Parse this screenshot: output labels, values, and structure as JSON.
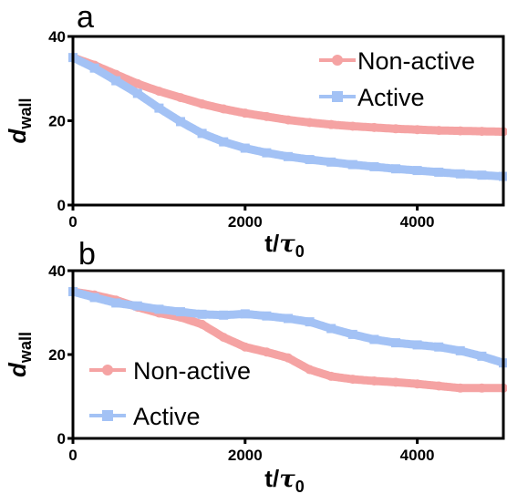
{
  "chart_data": [
    {
      "type": "line",
      "panel": "a",
      "xlabel": {
        "main": "t/",
        "greek": "τ",
        "sub": "0"
      },
      "ylabel": {
        "main": "d",
        "sub": "wall"
      },
      "xlim": [
        0,
        5000
      ],
      "ylim": [
        0,
        40
      ],
      "xticks": [
        "0",
        "2000",
        "4000"
      ],
      "yticks": [
        "0",
        "20",
        "40"
      ],
      "legend_position": "top-right",
      "series": [
        {
          "name": "Non-active",
          "color": "#f5a3a3",
          "marker": "circle",
          "x": [
            0,
            250,
            500,
            750,
            1000,
            1250,
            1500,
            1750,
            2000,
            2250,
            2500,
            2750,
            3000,
            3250,
            3500,
            3750,
            4000,
            4250,
            4500,
            4750,
            5000
          ],
          "y": [
            35,
            33.2,
            31.0,
            28.8,
            27.0,
            25.5,
            24.0,
            22.8,
            21.8,
            21.0,
            20.2,
            19.6,
            19.1,
            18.7,
            18.4,
            18.1,
            17.9,
            17.7,
            17.6,
            17.5,
            17.4
          ]
        },
        {
          "name": "Active",
          "color": "#a3c2f5",
          "marker": "square",
          "x": [
            0,
            250,
            500,
            750,
            1000,
            1250,
            1500,
            1750,
            2000,
            2250,
            2500,
            2750,
            3000,
            3250,
            3500,
            3750,
            4000,
            4250,
            4500,
            4750,
            5000
          ],
          "y": [
            35,
            32.5,
            29.5,
            26.5,
            23.0,
            19.8,
            17.0,
            15.0,
            13.5,
            12.4,
            11.5,
            10.8,
            10.2,
            9.6,
            9.1,
            8.6,
            8.2,
            7.8,
            7.4,
            7.1,
            6.8
          ]
        }
      ]
    },
    {
      "type": "line",
      "panel": "b",
      "xlabel": {
        "main": "t/",
        "greek": "τ",
        "sub": "0"
      },
      "ylabel": {
        "main": "d",
        "sub": "wall"
      },
      "xlim": [
        0,
        5000
      ],
      "ylim": [
        0,
        40
      ],
      "xticks": [
        "0",
        "2000",
        "4000"
      ],
      "yticks": [
        "0",
        "20",
        "40"
      ],
      "legend_position": "bottom-left",
      "series": [
        {
          "name": "Non-active",
          "color": "#f5a3a3",
          "marker": "circle",
          "x": [
            0,
            250,
            500,
            750,
            1000,
            1250,
            1500,
            1750,
            2000,
            2250,
            2500,
            2750,
            3000,
            3250,
            3500,
            3750,
            4000,
            4250,
            4500,
            4750,
            5000
          ],
          "y": [
            35,
            34.2,
            33.0,
            31.3,
            29.9,
            28.9,
            27.2,
            24.1,
            21.8,
            20.6,
            19.2,
            16.4,
            14.8,
            14.1,
            13.7,
            13.4,
            13.0,
            12.5,
            12.0,
            12.0,
            12.0
          ]
        },
        {
          "name": "Active",
          "color": "#a3c2f5",
          "marker": "square",
          "x": [
            0,
            250,
            500,
            750,
            1000,
            1250,
            1500,
            1750,
            2000,
            2250,
            2500,
            2750,
            3000,
            3250,
            3500,
            3750,
            4000,
            4250,
            4500,
            4750,
            5000
          ],
          "y": [
            35,
            33.6,
            32.3,
            31.6,
            30.8,
            30.2,
            29.6,
            29.4,
            29.7,
            29.2,
            28.6,
            27.8,
            26.2,
            24.8,
            23.6,
            22.8,
            22.3,
            21.8,
            20.9,
            19.6,
            18.0
          ]
        }
      ]
    }
  ]
}
